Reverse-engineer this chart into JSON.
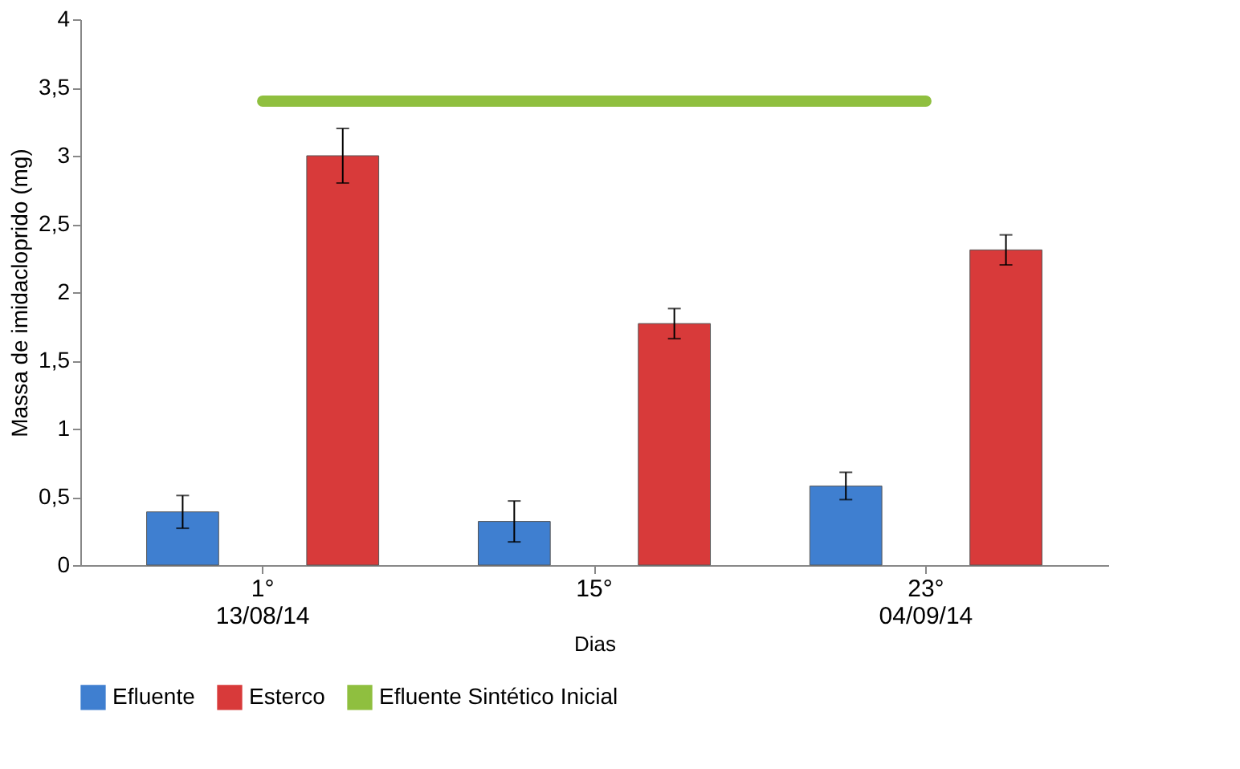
{
  "chart_data": {
    "type": "bar",
    "xlabel": "Dias",
    "ylabel": "Massa de imidacloprido (mg)",
    "categories": [
      "1°\n13/08/14",
      "15°",
      "23°\n04/09/14"
    ],
    "series": [
      {
        "name": "Efluente",
        "color": "#3f7fd0",
        "values": [
          0.39,
          0.32,
          0.58
        ],
        "errors": [
          0.12,
          0.15,
          0.1
        ]
      },
      {
        "name": "Esterco",
        "color": "#d83a3a",
        "values": [
          3.0,
          1.77,
          2.31
        ],
        "errors": [
          0.2,
          0.11,
          0.11
        ]
      },
      {
        "name": "Efluente Sintético Inicial",
        "color": "#8fbf3f",
        "type": "line",
        "values": [
          3.4,
          3.4,
          3.4
        ]
      }
    ],
    "ylim": [
      0,
      4
    ],
    "yticks": [
      0,
      {
        "value": 0.5,
        "label": "0,5"
      },
      1,
      {
        "value": 1.5,
        "label": "1,5"
      },
      2,
      {
        "value": 2.5,
        "label": "2,5"
      },
      3,
      {
        "value": 3.5,
        "label": "3,5"
      },
      4
    ],
    "grid": false,
    "legend": "bottom"
  }
}
